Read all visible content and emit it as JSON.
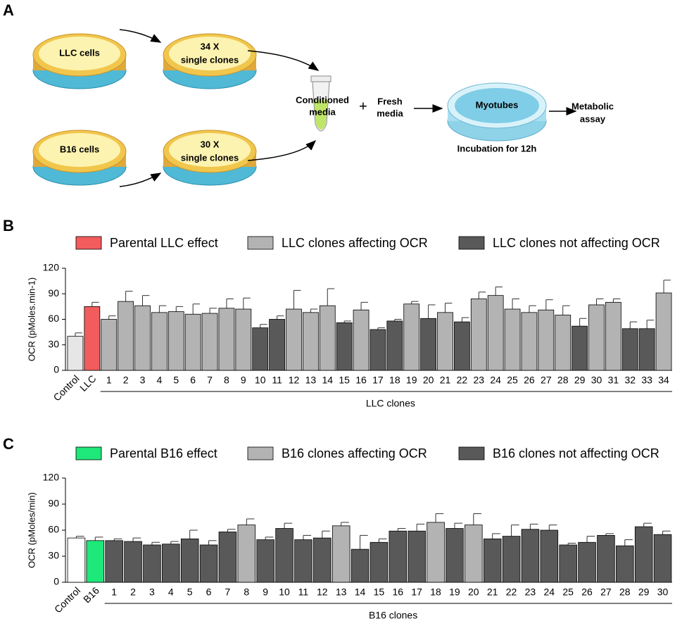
{
  "panel_a": {
    "label": "A",
    "llc_dish": "LLC cells",
    "llc_clones": [
      "34 X",
      "single clones"
    ],
    "b16_dish": "B16 cells",
    "b16_clones": [
      "30 X",
      "single clones"
    ],
    "conditioned": [
      "Conditioned",
      "media"
    ],
    "plus": "+",
    "fresh": [
      "Fresh",
      "media"
    ],
    "myotubes": "Myotubes",
    "incubation": "Incubation for 12h",
    "assay": [
      "Metabolic",
      "assay"
    ]
  },
  "chart_data": [
    {
      "type": "bar",
      "panel_label": "B",
      "y_label": "OCR (pMoles.min-1)",
      "x_label": "LLC clones",
      "legend": [
        {
          "name": "Parental LLC effect",
          "color": "#f25c5c"
        },
        {
          "name": "LLC clones affecting OCR",
          "color": "#b3b3b3"
        },
        {
          "name": "LLC clones not affecting OCR",
          "color": "#595959"
        }
      ],
      "categories": [
        "Control",
        "LLC",
        "1",
        "2",
        "3",
        "4",
        "5",
        "6",
        "7",
        "8",
        "9",
        "10",
        "11",
        "12",
        "13",
        "14",
        "15",
        "16",
        "17",
        "18",
        "19",
        "20",
        "21",
        "22",
        "23",
        "24",
        "25",
        "26",
        "27",
        "28",
        "29",
        "30",
        "31",
        "32",
        "33",
        "34"
      ],
      "values": [
        40,
        75,
        60,
        81,
        76,
        68,
        69,
        66,
        67,
        73,
        72,
        50,
        60,
        72,
        68,
        76,
        56,
        71,
        48,
        58,
        78,
        61,
        68,
        57,
        84,
        88,
        72,
        68,
        71,
        65,
        52,
        77,
        80,
        49,
        49,
        91
      ],
      "errors": [
        4,
        5,
        4,
        12,
        12,
        8,
        6,
        12,
        6,
        11,
        13,
        4,
        4,
        22,
        4,
        20,
        2,
        9,
        2,
        2,
        3,
        16,
        11,
        5,
        8,
        10,
        12,
        8,
        12,
        11,
        9,
        7,
        4,
        8,
        10,
        15
      ],
      "colors": [
        "#e6e6e6",
        "#f25c5c",
        "#b3b3b3",
        "#b3b3b3",
        "#b3b3b3",
        "#b3b3b3",
        "#b3b3b3",
        "#b3b3b3",
        "#b3b3b3",
        "#b3b3b3",
        "#b3b3b3",
        "#595959",
        "#595959",
        "#b3b3b3",
        "#b3b3b3",
        "#b3b3b3",
        "#595959",
        "#b3b3b3",
        "#595959",
        "#595959",
        "#b3b3b3",
        "#595959",
        "#b3b3b3",
        "#595959",
        "#b3b3b3",
        "#b3b3b3",
        "#b3b3b3",
        "#b3b3b3",
        "#b3b3b3",
        "#b3b3b3",
        "#595959",
        "#b3b3b3",
        "#b3b3b3",
        "#595959",
        "#595959",
        "#b3b3b3"
      ],
      "ylim": [
        0,
        120
      ],
      "yticks": [
        0,
        30,
        60,
        90,
        120
      ]
    },
    {
      "type": "bar",
      "panel_label": "C",
      "y_label": "OCR (pMoles/min)",
      "x_label": "B16 clones",
      "legend": [
        {
          "name": "Parental B16 effect",
          "color": "#1ee87a"
        },
        {
          "name": "B16 clones affecting OCR",
          "color": "#b3b3b3"
        },
        {
          "name": "B16 clones not affecting OCR",
          "color": "#595959"
        }
      ],
      "categories": [
        "Control",
        "B16",
        "1",
        "2",
        "3",
        "4",
        "5",
        "6",
        "7",
        "8",
        "9",
        "10",
        "11",
        "12",
        "13",
        "14",
        "15",
        "16",
        "17",
        "18",
        "19",
        "20",
        "21",
        "22",
        "23",
        "24",
        "25",
        "26",
        "27",
        "28",
        "29",
        "30"
      ],
      "values": [
        51,
        48,
        48,
        47,
        43,
        44,
        50,
        43,
        58,
        66,
        49,
        62,
        49,
        51,
        65,
        38,
        46,
        59,
        59,
        69,
        62,
        66,
        50,
        53,
        61,
        60,
        43,
        46,
        54,
        42,
        64,
        55
      ],
      "errors": [
        2,
        4,
        2,
        4,
        3,
        3,
        10,
        5,
        3,
        7,
        3,
        6,
        5,
        8,
        4,
        16,
        4,
        3,
        8,
        10,
        6,
        13,
        6,
        13,
        6,
        6,
        2,
        7,
        2,
        7,
        4,
        4
      ],
      "colors": [
        "#ffffff",
        "#1ee87a",
        "#595959",
        "#595959",
        "#595959",
        "#595959",
        "#595959",
        "#595959",
        "#595959",
        "#b3b3b3",
        "#595959",
        "#595959",
        "#595959",
        "#595959",
        "#b3b3b3",
        "#595959",
        "#595959",
        "#595959",
        "#595959",
        "#b3b3b3",
        "#595959",
        "#b3b3b3",
        "#595959",
        "#595959",
        "#595959",
        "#595959",
        "#595959",
        "#595959",
        "#595959",
        "#595959",
        "#595959",
        "#595959"
      ],
      "ylim": [
        0,
        120
      ],
      "yticks": [
        0,
        30,
        60,
        90,
        120
      ]
    }
  ]
}
